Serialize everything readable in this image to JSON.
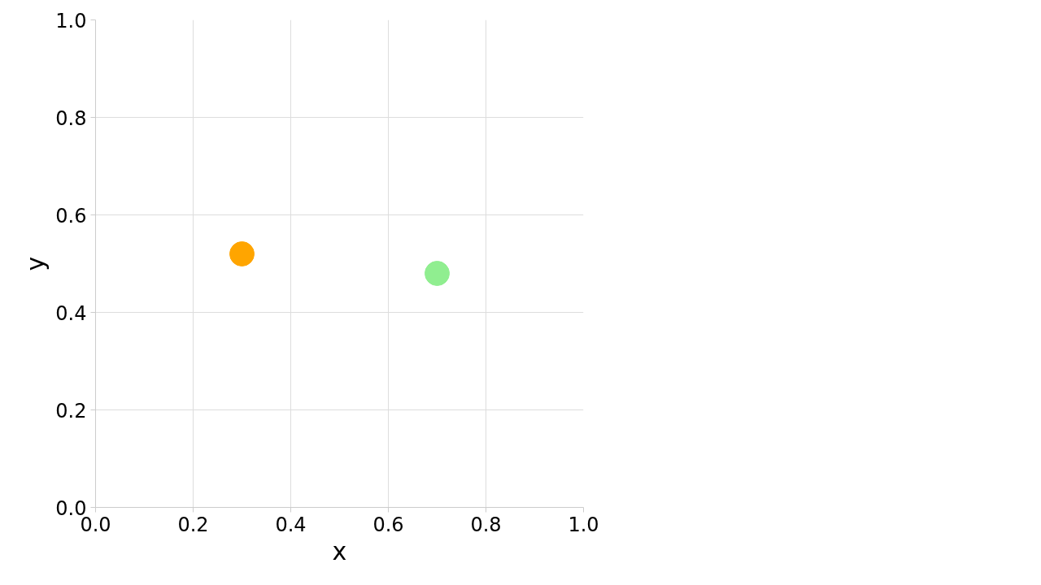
{
  "chart_data": {
    "type": "scatter",
    "xlabel": "x",
    "ylabel": "y",
    "x": [
      0.3,
      0.7
    ],
    "values": [
      0.52,
      0.48
    ],
    "colors": [
      "#ffa500",
      "#90ee90"
    ],
    "xlim": [
      0,
      1
    ],
    "ylim": [
      0,
      1
    ],
    "xticks": [
      {
        "value": 0,
        "label": "0.0"
      },
      0.2,
      0.4,
      0.6,
      0.8,
      {
        "value": 1,
        "label": "1.0"
      }
    ],
    "yticks": [
      {
        "value": 0,
        "label": "0.0"
      },
      0.2,
      0.4,
      0.6,
      0.8,
      {
        "value": 1,
        "label": "1.0"
      }
    ],
    "grid": true,
    "marker": "circle"
  }
}
